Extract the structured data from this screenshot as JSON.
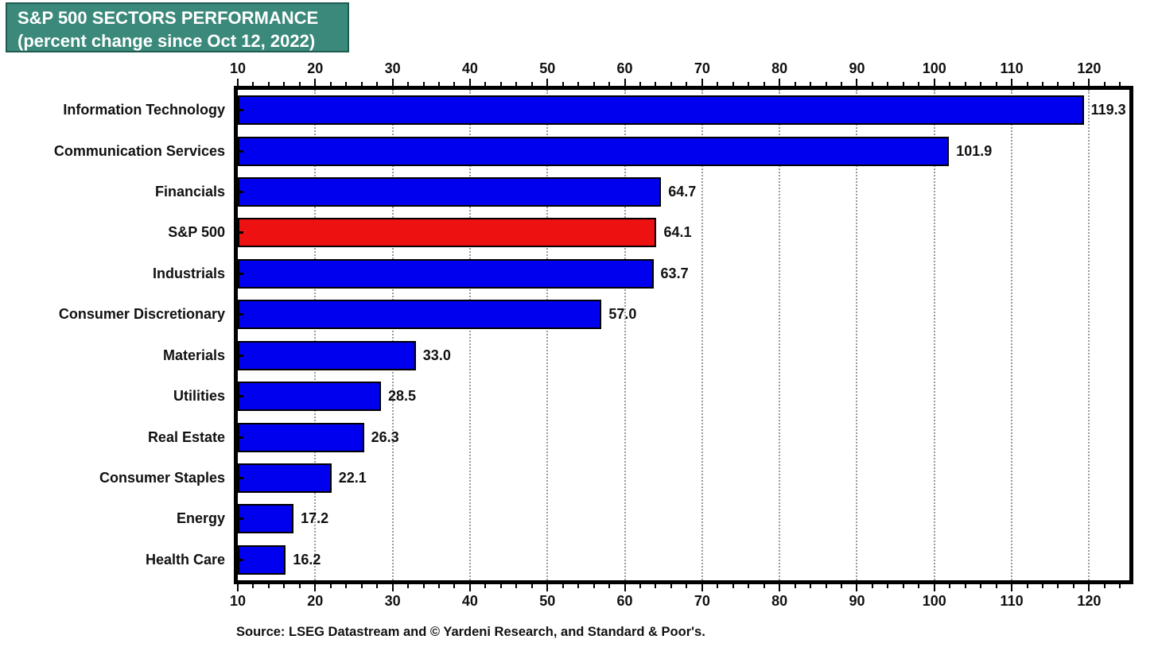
{
  "title": {
    "line1": "S&P 500 SECTORS PERFORMANCE",
    "line2": "(percent change since Oct 12, 2022)",
    "bg_color": "#3A897B",
    "border_color": "#1E5B51",
    "text_color": "#FFFFFF"
  },
  "source": "Source: LSEG Datastream and © Yardeni Research, and Standard & Poor's.",
  "chart_data": {
    "type": "bar",
    "orientation": "horizontal",
    "title": "S&P 500 SECTORS PERFORMANCE (percent change since Oct 12, 2022)",
    "categories": [
      "Information Technology",
      "Communication Services",
      "Financials",
      "S&P 500",
      "Industrials",
      "Consumer Discretionary",
      "Materials",
      "Utilities",
      "Real Estate",
      "Consumer Staples",
      "Energy",
      "Health Care"
    ],
    "values": [
      119.3,
      101.9,
      64.7,
      64.1,
      63.7,
      57.0,
      33.0,
      28.5,
      26.3,
      22.1,
      17.2,
      16.2
    ],
    "value_labels": [
      "119.3",
      "101.9",
      "64.7",
      "64.1",
      "63.7",
      "57.0",
      "33.0",
      "28.5",
      "26.3",
      "22.1",
      "17.2",
      "16.2"
    ],
    "bar_color": "#0000EE",
    "highlight_category": "S&P 500",
    "highlight_color": "#EE1111",
    "bar_border_color": "#000000",
    "axis": {
      "min": 10,
      "max": 125.2,
      "major_tick_step": 10,
      "minor_tick_step": 2,
      "tick_values": [
        10,
        20,
        30,
        40,
        50,
        60,
        70,
        80,
        90,
        100,
        110,
        120
      ],
      "tick_labels": [
        "10",
        "20",
        "30",
        "40",
        "50",
        "60",
        "70",
        "80",
        "90",
        "100",
        "110",
        "120"
      ]
    },
    "grid": "dotted vertical gridlines at major ticks",
    "legend": "none"
  }
}
